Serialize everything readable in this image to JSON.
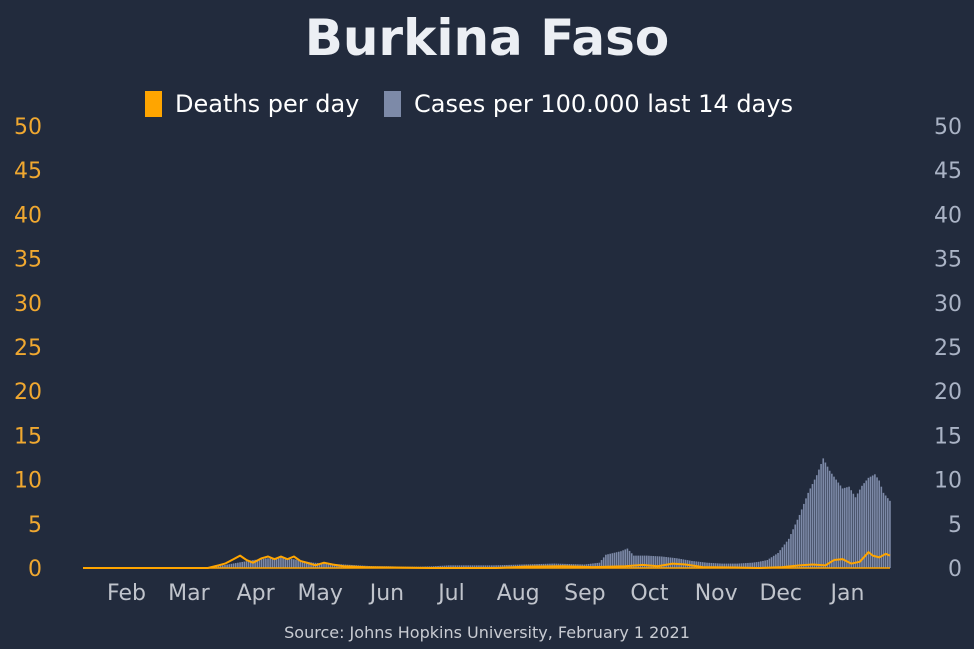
{
  "chart_data": {
    "type": "bar+line",
    "title": "Burkina Faso",
    "source": "Source: Johns Hopkins University, February 1 2021",
    "legend": {
      "placement": "top-center",
      "items": [
        {
          "key": "deaths",
          "label": "Deaths per day",
          "color": "#ffa500"
        },
        {
          "key": "cases",
          "label": "Cases per 100.000 last 14 days",
          "color": "#7d8aa8"
        }
      ]
    },
    "y_left": {
      "ticks": [
        "0",
        "5",
        "10",
        "15",
        "20",
        "25",
        "30",
        "35",
        "40",
        "45",
        "50"
      ],
      "range": [
        0,
        50
      ],
      "color": "#f0a830"
    },
    "y_right": {
      "ticks": [
        "0",
        "5",
        "10",
        "15",
        "20",
        "25",
        "30",
        "35",
        "40",
        "45",
        "50"
      ],
      "range": [
        0,
        50
      ],
      "color": "#aab3c5"
    },
    "x_axis": {
      "range": [
        "2020-01-22",
        "2021-01-31"
      ],
      "months": [
        {
          "label": "Feb",
          "date": "2020-02-01"
        },
        {
          "label": "Mar",
          "date": "2020-03-01"
        },
        {
          "label": "Apr",
          "date": "2020-04-01"
        },
        {
          "label": "May",
          "date": "2020-05-01"
        },
        {
          "label": "Jun",
          "date": "2020-06-01"
        },
        {
          "label": "Jul",
          "date": "2020-07-01"
        },
        {
          "label": "Aug",
          "date": "2020-08-01"
        },
        {
          "label": "Sep",
          "date": "2020-09-01"
        },
        {
          "label": "Oct",
          "date": "2020-10-01"
        },
        {
          "label": "Nov",
          "date": "2020-11-01"
        },
        {
          "label": "Dec",
          "date": "2020-12-01"
        },
        {
          "label": "Jan",
          "date": "2021-01-01"
        }
      ]
    },
    "grid": false,
    "series": [
      {
        "name": "Cases per 100.000 last 14 days",
        "kind": "bar",
        "axis": "right",
        "color": "#7d8aa8",
        "points": [
          [
            "2020-03-09",
            0
          ],
          [
            "2020-03-20",
            0.1
          ],
          [
            "2020-03-27",
            0.3
          ],
          [
            "2020-04-03",
            0.6
          ],
          [
            "2020-04-10",
            0.9
          ],
          [
            "2020-04-17",
            1.1
          ],
          [
            "2020-04-24",
            1.2
          ],
          [
            "2020-05-01",
            0.9
          ],
          [
            "2020-05-08",
            0.6
          ],
          [
            "2020-05-15",
            0.5
          ],
          [
            "2020-05-22",
            0.4
          ],
          [
            "2020-05-29",
            0.3
          ],
          [
            "2020-06-05",
            0.2
          ],
          [
            "2020-06-12",
            0.2
          ],
          [
            "2020-06-19",
            0.15
          ],
          [
            "2020-06-26",
            0.15
          ],
          [
            "2020-07-03",
            0.2
          ],
          [
            "2020-07-10",
            0.3
          ],
          [
            "2020-07-17",
            0.3
          ],
          [
            "2020-07-24",
            0.3
          ],
          [
            "2020-07-31",
            0.3
          ],
          [
            "2020-08-07",
            0.35
          ],
          [
            "2020-08-14",
            0.4
          ],
          [
            "2020-08-21",
            0.45
          ],
          [
            "2020-08-28",
            0.5
          ],
          [
            "2020-09-04",
            0.45
          ],
          [
            "2020-09-11",
            0.4
          ],
          [
            "2020-09-18",
            0.6
          ],
          [
            "2020-09-21",
            1.5
          ],
          [
            "2020-09-28",
            1.9
          ],
          [
            "2020-10-01",
            2.2
          ],
          [
            "2020-10-04",
            1.4
          ],
          [
            "2020-10-10",
            1.4
          ],
          [
            "2020-10-17",
            1.3
          ],
          [
            "2020-10-24",
            1.1
          ],
          [
            "2020-10-31",
            0.8
          ],
          [
            "2020-11-07",
            0.6
          ],
          [
            "2020-11-14",
            0.5
          ],
          [
            "2020-11-21",
            0.5
          ],
          [
            "2020-11-28",
            0.6
          ],
          [
            "2020-12-01",
            0.7
          ],
          [
            "2020-12-05",
            0.9
          ],
          [
            "2020-12-10",
            1.7
          ],
          [
            "2020-12-15",
            3.3
          ],
          [
            "2020-12-20",
            6.0
          ],
          [
            "2020-12-24",
            8.5
          ],
          [
            "2020-12-28",
            10.5
          ],
          [
            "2020-12-31",
            12.4
          ],
          [
            "2021-01-03",
            11.0
          ],
          [
            "2021-01-06",
            10.0
          ],
          [
            "2021-01-09",
            9.0
          ],
          [
            "2021-01-12",
            9.2
          ],
          [
            "2021-01-15",
            8.0
          ],
          [
            "2021-01-18",
            9.3
          ],
          [
            "2021-01-21",
            10.2
          ],
          [
            "2021-01-24",
            10.6
          ],
          [
            "2021-01-26",
            9.9
          ],
          [
            "2021-01-28",
            8.5
          ],
          [
            "2021-01-31",
            7.6
          ]
        ]
      },
      {
        "name": "Deaths per day",
        "kind": "line",
        "axis": "left",
        "color": "#ffa500",
        "points": [
          [
            "2020-01-22",
            0
          ],
          [
            "2020-03-20",
            0
          ],
          [
            "2020-03-25",
            0.3
          ],
          [
            "2020-03-28",
            0.5
          ],
          [
            "2020-04-01",
            1.0
          ],
          [
            "2020-04-04",
            1.4
          ],
          [
            "2020-04-07",
            0.9
          ],
          [
            "2020-04-10",
            0.6
          ],
          [
            "2020-04-14",
            1.1
          ],
          [
            "2020-04-17",
            1.3
          ],
          [
            "2020-04-20",
            1.0
          ],
          [
            "2020-04-23",
            1.3
          ],
          [
            "2020-04-26",
            1.0
          ],
          [
            "2020-04-29",
            1.3
          ],
          [
            "2020-05-02",
            0.8
          ],
          [
            "2020-05-05",
            0.6
          ],
          [
            "2020-05-09",
            0.3
          ],
          [
            "2020-05-13",
            0.6
          ],
          [
            "2020-05-17",
            0.4
          ],
          [
            "2020-05-22",
            0.2
          ],
          [
            "2020-06-01",
            0.1
          ],
          [
            "2020-06-15",
            0.05
          ],
          [
            "2020-07-01",
            0
          ],
          [
            "2020-08-01",
            0
          ],
          [
            "2020-08-15",
            0.15
          ],
          [
            "2020-09-01",
            0.2
          ],
          [
            "2020-09-15",
            0.1
          ],
          [
            "2020-09-30",
            0.2
          ],
          [
            "2020-10-08",
            0.35
          ],
          [
            "2020-10-15",
            0.2
          ],
          [
            "2020-10-22",
            0.5
          ],
          [
            "2020-10-28",
            0.4
          ],
          [
            "2020-11-05",
            0.1
          ],
          [
            "2020-11-20",
            0.05
          ],
          [
            "2020-12-01",
            0
          ],
          [
            "2020-12-12",
            0.1
          ],
          [
            "2020-12-20",
            0.3
          ],
          [
            "2020-12-26",
            0.4
          ],
          [
            "2021-01-01",
            0.3
          ],
          [
            "2021-01-05",
            0.9
          ],
          [
            "2021-01-09",
            1.0
          ],
          [
            "2021-01-13",
            0.5
          ],
          [
            "2021-01-17",
            0.7
          ],
          [
            "2021-01-21",
            1.8
          ],
          [
            "2021-01-23",
            1.4
          ],
          [
            "2021-01-26",
            1.2
          ],
          [
            "2021-01-29",
            1.6
          ],
          [
            "2021-01-31",
            1.4
          ]
        ]
      }
    ]
  }
}
